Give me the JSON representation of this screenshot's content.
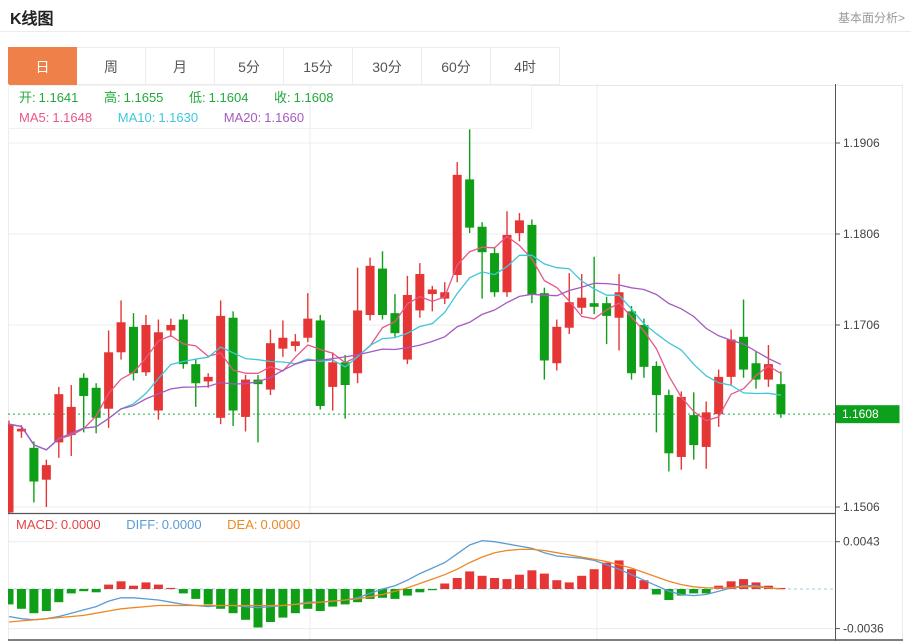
{
  "header": {
    "title": "K线图",
    "link": "基本面分析>"
  },
  "tabs": {
    "items": [
      "日",
      "周",
      "月",
      "5分",
      "15分",
      "30分",
      "60分",
      "4时"
    ],
    "active": "日",
    "active_index": 0
  },
  "readout": {
    "open_label": "开:",
    "open": "1.1641",
    "high_label": "高:",
    "high": "1.1655",
    "low_label": "低:",
    "low": "1.1604",
    "close_label": "收:",
    "close": "1.1608",
    "ma5_label": "MA5:",
    "ma5": "1.1648",
    "ma10_label": "MA10:",
    "ma10": "1.1630",
    "ma20_label": "MA20:",
    "ma20": "1.1660"
  },
  "macd_readout": {
    "macd_label": "MACD:",
    "macd": "0.0000",
    "diff_label": "DIFF:",
    "diff": "0.0000",
    "dea_label": "DEA:",
    "dea": "0.0000"
  },
  "price_axis": {
    "ticks": [
      "1.1906",
      "1.1806",
      "1.1706",
      "1.1506"
    ],
    "last_price": "1.1608"
  },
  "macd_axis": {
    "max": "0.0043",
    "min": "-0.0036"
  },
  "colors": {
    "up": "#e53535",
    "down": "#0f9f16",
    "ma5": "#e85788",
    "ma10": "#3fc6da",
    "ma20": "#a55bc1",
    "diff_line": "#5b9bd5",
    "dea_line": "#ee8822",
    "tab_active": "#ef8049",
    "price_line": "#1fa83c",
    "badge_bg": "#0da01d",
    "grid": "#ececec",
    "axis": "#555555",
    "macd_zero_line": "#9ad3dc",
    "axis_text": "#444444"
  },
  "chart_data": {
    "type": "candlestick",
    "title": "K线图",
    "interval": "日",
    "y_axis": {
      "range": [
        1.1506,
        1.1906
      ],
      "ticks": [
        1.1906,
        1.1806,
        1.1706,
        1.1506
      ],
      "last_price": 1.1608,
      "grid": true
    },
    "ohlc_last": {
      "open": 1.1641,
      "high": 1.1655,
      "low": 1.1604,
      "close": 1.1608
    },
    "ma_periods": [
      5,
      10,
      20
    ],
    "ma_last": {
      "ma5": 1.1648,
      "ma10": 1.163,
      "ma20": 1.166
    },
    "candles": [
      [
        1.15,
        1.1601,
        1.1496,
        1.1597
      ],
      [
        1.1589,
        1.1596,
        1.1582,
        1.1592
      ],
      [
        1.1571,
        1.1578,
        1.1511,
        1.1534
      ],
      [
        1.1536,
        1.1558,
        1.1506,
        1.1552
      ],
      [
        1.1577,
        1.1638,
        1.156,
        1.163
      ],
      [
        1.1585,
        1.164,
        1.1562,
        1.1616
      ],
      [
        1.1648,
        1.1653,
        1.1588,
        1.1628
      ],
      [
        1.1637,
        1.1642,
        1.1587,
        1.1604
      ],
      [
        1.1614,
        1.17,
        1.1593,
        1.1676
      ],
      [
        1.1676,
        1.1733,
        1.1668,
        1.1709
      ],
      [
        1.1704,
        1.1719,
        1.1645,
        1.1653
      ],
      [
        1.1654,
        1.1717,
        1.165,
        1.1706
      ],
      [
        1.1612,
        1.1712,
        1.1602,
        1.1698
      ],
      [
        1.17,
        1.1713,
        1.1693,
        1.1706
      ],
      [
        1.1712,
        1.1718,
        1.1658,
        1.1663
      ],
      [
        1.1663,
        1.1669,
        1.1616,
        1.1642
      ],
      [
        1.1644,
        1.1653,
        1.1637,
        1.1649
      ],
      [
        1.1604,
        1.1733,
        1.1597,
        1.1716
      ],
      [
        1.1714,
        1.1721,
        1.1595,
        1.1612
      ],
      [
        1.1605,
        1.1651,
        1.1589,
        1.1646
      ],
      [
        1.1646,
        1.1651,
        1.1577,
        1.1641
      ],
      [
        1.1635,
        1.1701,
        1.1629,
        1.1686
      ],
      [
        1.168,
        1.1711,
        1.1671,
        1.1692
      ],
      [
        1.1683,
        1.1696,
        1.1677,
        1.1688
      ],
      [
        1.1692,
        1.1741,
        1.1687,
        1.1713
      ],
      [
        1.1711,
        1.1717,
        1.1613,
        1.1617
      ],
      [
        1.1638,
        1.1676,
        1.1612,
        1.1665
      ],
      [
        1.1665,
        1.1673,
        1.1603,
        1.164
      ],
      [
        1.1653,
        1.1769,
        1.1642,
        1.1722
      ],
      [
        1.1717,
        1.178,
        1.1711,
        1.1771
      ],
      [
        1.1768,
        1.1787,
        1.1712,
        1.1717
      ],
      [
        1.1719,
        1.174,
        1.1693,
        1.1697
      ],
      [
        1.1668,
        1.176,
        1.1663,
        1.1739
      ],
      [
        1.1722,
        1.1774,
        1.1714,
        1.1762
      ],
      [
        1.174,
        1.1749,
        1.1721,
        1.1745
      ],
      [
        1.1735,
        1.1753,
        1.1729,
        1.1742
      ],
      [
        1.1761,
        1.1885,
        1.1753,
        1.1871
      ],
      [
        1.1866,
        1.1921,
        1.1807,
        1.1813
      ],
      [
        1.1814,
        1.1819,
        1.1735,
        1.1786
      ],
      [
        1.1785,
        1.1791,
        1.1737,
        1.1742
      ],
      [
        1.1742,
        1.1831,
        1.1737,
        1.1805
      ],
      [
        1.1807,
        1.1829,
        1.1798,
        1.1821
      ],
      [
        1.1816,
        1.1822,
        1.173,
        1.1739
      ],
      [
        1.1741,
        1.1747,
        1.1646,
        1.1667
      ],
      [
        1.1664,
        1.1712,
        1.1656,
        1.1704
      ],
      [
        1.1703,
        1.1763,
        1.1696,
        1.1731
      ],
      [
        1.1725,
        1.1762,
        1.1718,
        1.1736
      ],
      [
        1.173,
        1.1781,
        1.1718,
        1.1726
      ],
      [
        1.173,
        1.1737,
        1.1685,
        1.1716
      ],
      [
        1.1714,
        1.1762,
        1.1678,
        1.1742
      ],
      [
        1.1721,
        1.1727,
        1.1646,
        1.1653
      ],
      [
        1.1706,
        1.1713,
        1.1648,
        1.166
      ],
      [
        1.1661,
        1.1666,
        1.1588,
        1.1629
      ],
      [
        1.1629,
        1.1635,
        1.1545,
        1.1565
      ],
      [
        1.1561,
        1.1633,
        1.1547,
        1.1627
      ],
      [
        1.1607,
        1.1632,
        1.1558,
        1.1574
      ],
      [
        1.1572,
        1.1622,
        1.1548,
        1.161
      ],
      [
        1.1608,
        1.1657,
        1.1594,
        1.1649
      ],
      [
        1.1649,
        1.1701,
        1.164,
        1.169
      ],
      [
        1.1693,
        1.1734,
        1.1648,
        1.1657
      ],
      [
        1.1664,
        1.1677,
        1.1636,
        1.1646
      ],
      [
        1.1646,
        1.1684,
        1.1638,
        1.1663
      ],
      [
        1.1641,
        1.1655,
        1.1604,
        1.1608
      ]
    ],
    "macd_panel": {
      "unit": 0.0001,
      "axis_max": 0.0043,
      "axis_min": -0.0036,
      "last": {
        "macd": 0.0,
        "diff": 0.0,
        "dea": 0.0
      },
      "hist": [
        -14,
        -18,
        -22,
        -20,
        -12,
        -4,
        -2,
        -3,
        4,
        7,
        3,
        6,
        4,
        1,
        -4,
        -9,
        -14,
        -18,
        -22,
        -28,
        -35,
        -30,
        -26,
        -22,
        -18,
        -20,
        -16,
        -14,
        -12,
        -9,
        -8,
        -9,
        -6,
        -3,
        -1,
        5,
        10,
        16,
        12,
        10,
        9,
        13,
        17,
        14,
        8,
        6,
        12,
        18,
        24,
        26,
        18,
        8,
        -5,
        -10,
        -6,
        -4,
        -4,
        3,
        7,
        9,
        6,
        3,
        1
      ],
      "diff": [
        -25,
        -27,
        -28,
        -27,
        -25,
        -22,
        -19,
        -16,
        -11,
        -8,
        -8,
        -9,
        -10,
        -12,
        -14,
        -15,
        -16,
        -15,
        -15,
        -16,
        -17,
        -16,
        -15,
        -14,
        -12,
        -12,
        -11,
        -10,
        -8,
        -4,
        0,
        3,
        8,
        14,
        19,
        24,
        32,
        40,
        44,
        43,
        41,
        39,
        37,
        33,
        30,
        29,
        28,
        26,
        22,
        18,
        13,
        8,
        3,
        -2,
        -5,
        -6,
        -5,
        -2,
        1,
        3,
        3,
        1,
        0
      ],
      "dea": [
        -30,
        -29,
        -28,
        -27,
        -26,
        -25,
        -24,
        -22,
        -20,
        -18,
        -17,
        -16,
        -15,
        -15,
        -15,
        -15,
        -15,
        -15,
        -15,
        -15,
        -15,
        -15,
        -15,
        -14,
        -13,
        -12,
        -11,
        -10,
        -9,
        -7,
        -5,
        -2,
        1,
        5,
        9,
        13,
        18,
        24,
        29,
        33,
        35,
        36,
        36,
        35,
        33,
        31,
        29,
        27,
        25,
        22,
        19,
        15,
        11,
        7,
        4,
        2,
        1,
        1,
        1,
        2,
        2,
        1,
        0
      ]
    }
  }
}
